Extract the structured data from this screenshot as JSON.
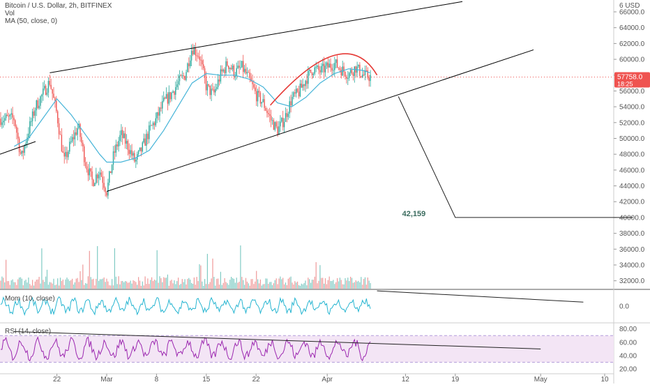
{
  "chart_data": [
    {
      "type": "candlestick",
      "title": "Bitcoin / U.S. Dollar, 2h, BITFINEX",
      "ylim": [
        31000,
        67500
      ],
      "yticks": [
        "32000.0",
        "34000.0",
        "36000.0",
        "38000.0",
        "40000.0",
        "42000.0",
        "44000.0",
        "46000.0",
        "48000.0",
        "50000.0",
        "52000.0",
        "54000.0",
        "56000.0",
        "58000.0",
        "60000.0",
        "62000.0",
        "64000.0",
        "66000.0"
      ],
      "top_tick_label": "6 USD",
      "last_price": "57758.0",
      "countdown": "18:25",
      "last_price_color": "#ef5350",
      "up_color": "#26a69a",
      "down_color": "#ef5350",
      "ma_color": "#46b4d8",
      "xticks": [
        "22",
        "Mar",
        "8",
        "15",
        "22",
        "Apr",
        "12",
        "19",
        "May",
        "10"
      ],
      "price_path": [
        [
          "Feb 16",
          52500
        ],
        [
          "Feb 17",
          47500
        ],
        [
          "Feb 18",
          51000
        ],
        [
          "Feb 19",
          54000
        ],
        [
          "Feb 21",
          57200
        ],
        [
          "Feb 22",
          53000
        ],
        [
          "Feb 23",
          47000
        ],
        [
          "Feb 24",
          49500
        ],
        [
          "Feb 25",
          51500
        ],
        [
          "Feb 26",
          47000
        ],
        [
          "Feb 27",
          44500
        ],
        [
          "Feb 28",
          46000
        ],
        [
          "Mar 1",
          43300
        ],
        [
          "Mar 2",
          48000
        ],
        [
          "Mar 3",
          50500
        ],
        [
          "Mar 4",
          49000
        ],
        [
          "Mar 5",
          47000
        ],
        [
          "Mar 6",
          48800
        ],
        [
          "Mar 7",
          51000
        ],
        [
          "Mar 8",
          52500
        ],
        [
          "Mar 9",
          54500
        ],
        [
          "Mar 10",
          55500
        ],
        [
          "Mar 11",
          57000
        ],
        [
          "Mar 12",
          58000
        ],
        [
          "Mar 13",
          61500
        ],
        [
          "Mar 14",
          60500
        ],
        [
          "Mar 15",
          56500
        ],
        [
          "Mar 16",
          55500
        ],
        [
          "Mar 17",
          58000
        ],
        [
          "Mar 18",
          59500
        ],
        [
          "Mar 19",
          58300
        ],
        [
          "Mar 20",
          59000
        ],
        [
          "Mar 21",
          57500
        ],
        [
          "Mar 22",
          55500
        ],
        [
          "Mar 23",
          54500
        ],
        [
          "Mar 24",
          52500
        ],
        [
          "Mar 25",
          51000
        ],
        [
          "Mar 26",
          52500
        ],
        [
          "Mar 27",
          55000
        ],
        [
          "Mar 28",
          55800
        ],
        [
          "Mar 29",
          57500
        ],
        [
          "Mar 30",
          58800
        ],
        [
          "Mar 31",
          58500
        ],
        [
          "Apr 1",
          59000
        ],
        [
          "Apr 2",
          59500
        ],
        [
          "Apr 3",
          58700
        ],
        [
          "Apr 4",
          58100
        ],
        [
          "Apr 5",
          59000
        ],
        [
          "Apr 6",
          58000
        ],
        [
          "Apr 7",
          57800
        ]
      ],
      "ma_path": [
        [
          "Feb 16",
          49000
        ],
        [
          "Feb 18",
          50000
        ],
        [
          "Feb 20",
          52500
        ],
        [
          "Feb 22",
          55000
        ],
        [
          "Feb 24",
          53000
        ],
        [
          "Feb 26",
          50500
        ],
        [
          "Feb 28",
          48000
        ],
        [
          "Mar 1",
          47000
        ],
        [
          "Mar 3",
          47000
        ],
        [
          "Mar 5",
          47500
        ],
        [
          "Mar 7",
          48500
        ],
        [
          "Mar 9",
          51000
        ],
        [
          "Mar 11",
          54000
        ],
        [
          "Mar 13",
          57000
        ],
        [
          "Mar 15",
          58200
        ],
        [
          "Mar 17",
          58000
        ],
        [
          "Mar 19",
          58000
        ],
        [
          "Mar 21",
          57500
        ],
        [
          "Mar 23",
          56500
        ],
        [
          "Mar 25",
          54500
        ],
        [
          "Mar 27",
          54000
        ],
        [
          "Mar 29",
          55200
        ],
        [
          "Mar 31",
          57000
        ],
        [
          "Apr 2",
          58200
        ],
        [
          "Apr 4",
          58800
        ],
        [
          "Apr 6",
          58600
        ],
        [
          "Apr 7",
          58300
        ]
      ],
      "trendlines": [
        {
          "from": [
            "Feb 21",
            58300
          ],
          "to": [
            "Apr 20",
            67300
          ],
          "color": "#000000"
        },
        {
          "from": [
            "Mar 1",
            43300
          ],
          "to": [
            "Apr 30",
            61200
          ],
          "color": "#000000"
        },
        {
          "from": [
            "Feb 14",
            48000
          ],
          "to": [
            "Feb 19",
            49600
          ],
          "color": "#000000"
        },
        {
          "from": [
            "Mar 24",
            54200
          ],
          "to": [
            "Apr 8",
            58000
          ],
          "color": "#e53935",
          "curve": true,
          "peak": [
            "Apr 2",
            60500
          ]
        }
      ],
      "projection": {
        "path": [
          [
            "Apr 11",
            55300
          ],
          [
            "Apr 19",
            40000
          ],
          [
            "May 14",
            40000
          ]
        ],
        "label": "42,159",
        "label_at": [
          "Apr 13",
          40000
        ]
      },
      "legend": [
        "Bitcoin / U.S. Dollar, 2h, BITFINEX",
        "Vol",
        "MA (50, close, 0)"
      ]
    },
    {
      "type": "bar",
      "name": "Vol",
      "note": "Volume bars drawn at base of price panel",
      "up_color": "#80cbc4",
      "down_color": "#ef9a9a",
      "scale_max": 1.0
    },
    {
      "type": "line",
      "title": "Mom (10, close)",
      "ylim": [
        -1,
        1
      ],
      "yticks": [
        "0.0"
      ],
      "color": "#26b5d1",
      "trendline": {
        "from": [
          "Apr 8",
          0.95
        ],
        "to": [
          "May 7",
          0.25
        ]
      }
    },
    {
      "type": "line",
      "title": "RSI (14, close)",
      "ylim": [
        15,
        88
      ],
      "yticks": [
        "20.00",
        "40.00",
        "60.00",
        "80.00"
      ],
      "band": [
        30,
        70
      ],
      "band_color": "#f3e5f5",
      "line_color": "#9c27b0",
      "trendline": {
        "from": [
          "Feb 16",
          76
        ],
        "to": [
          "May 1",
          50
        ]
      }
    }
  ]
}
